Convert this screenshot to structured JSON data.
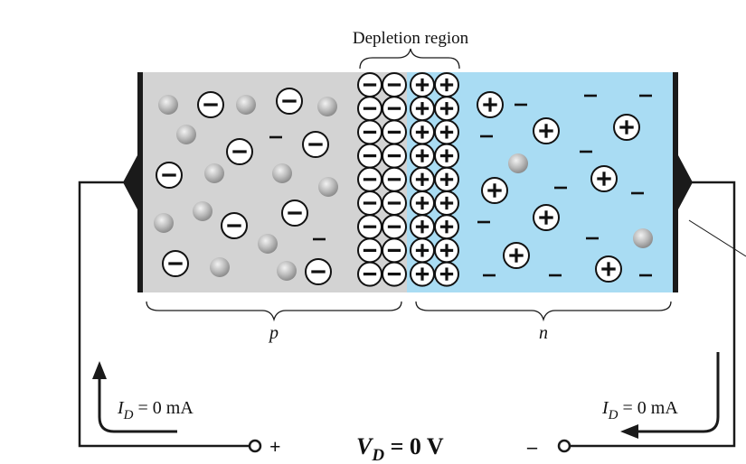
{
  "labels": {
    "depletion_region": "Depletion region",
    "p_region": "p",
    "n_region": "n",
    "current_left_symbol": "I",
    "current_left_sub": "D",
    "current_left_value": " = 0 mA",
    "current_right_symbol": "I",
    "current_right_sub": "D",
    "current_right_value": " = 0 mA",
    "voltage_symbol": "V",
    "voltage_sub": "D",
    "voltage_value": " = 0 V",
    "terminal_positive": "+",
    "terminal_negative": "–"
  },
  "colors": {
    "p_region": "#d3d3d3",
    "n_region": "#a9dcf3",
    "ion_fill": "#ffffff",
    "hole": "#b0b0b0",
    "electron": "#111111",
    "wire": "#1a1a1a"
  },
  "depletion": {
    "negative_ions_per_row": 2,
    "positive_ions_per_row": 2,
    "rows": 9
  },
  "icons": [
    "negative-ion-icon",
    "positive-ion-icon",
    "hole-icon",
    "electron-icon",
    "current-arrow-icon",
    "terminal-icon"
  ]
}
